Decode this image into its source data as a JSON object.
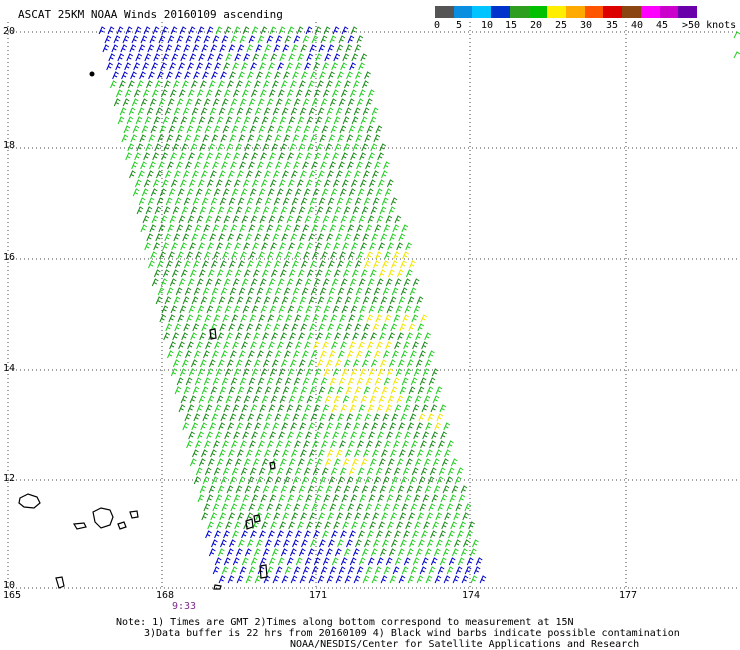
{
  "title": "ASCAT 25KM NOAA Winds 20160109 ascending",
  "colorbar": {
    "colors": [
      "#555555",
      "#0a8fe0",
      "#00c4ff",
      "#0033cc",
      "#2d9e20",
      "#00c000",
      "#ffee00",
      "#ffaa00",
      "#ff5500",
      "#dd0000",
      "#8b4513",
      "#ff00ff",
      "#cc00cc",
      "#6a00aa"
    ],
    "ticks": [
      "0",
      "5",
      "10",
      "15",
      "20",
      "25",
      "30",
      "35",
      "40",
      "45",
      ">50 knots"
    ]
  },
  "axes": {
    "lat_labels": [
      "20",
      "18",
      "16",
      "14",
      "12",
      "10"
    ],
    "lon_labels": [
      "165",
      "168",
      "171",
      "174",
      "177"
    ]
  },
  "time_label": "9:33",
  "notes": {
    "line1": "Note: 1) Times are GMT 2)Times along bottom correspond to measurement at 15N",
    "line2": "3)Data buffer is 22 hrs from 20160109 4) Black wind barbs indicate possible contamination",
    "line3": "NOAA/NESDIS/Center for Satellite Applications and Research"
  },
  "map": {
    "wind_colors": {
      "low": "#0000cc",
      "mid_dark": "#1a8a1a",
      "mid_light": "#22cc22",
      "high": "#f2e500",
      "contam": "#000000"
    }
  }
}
